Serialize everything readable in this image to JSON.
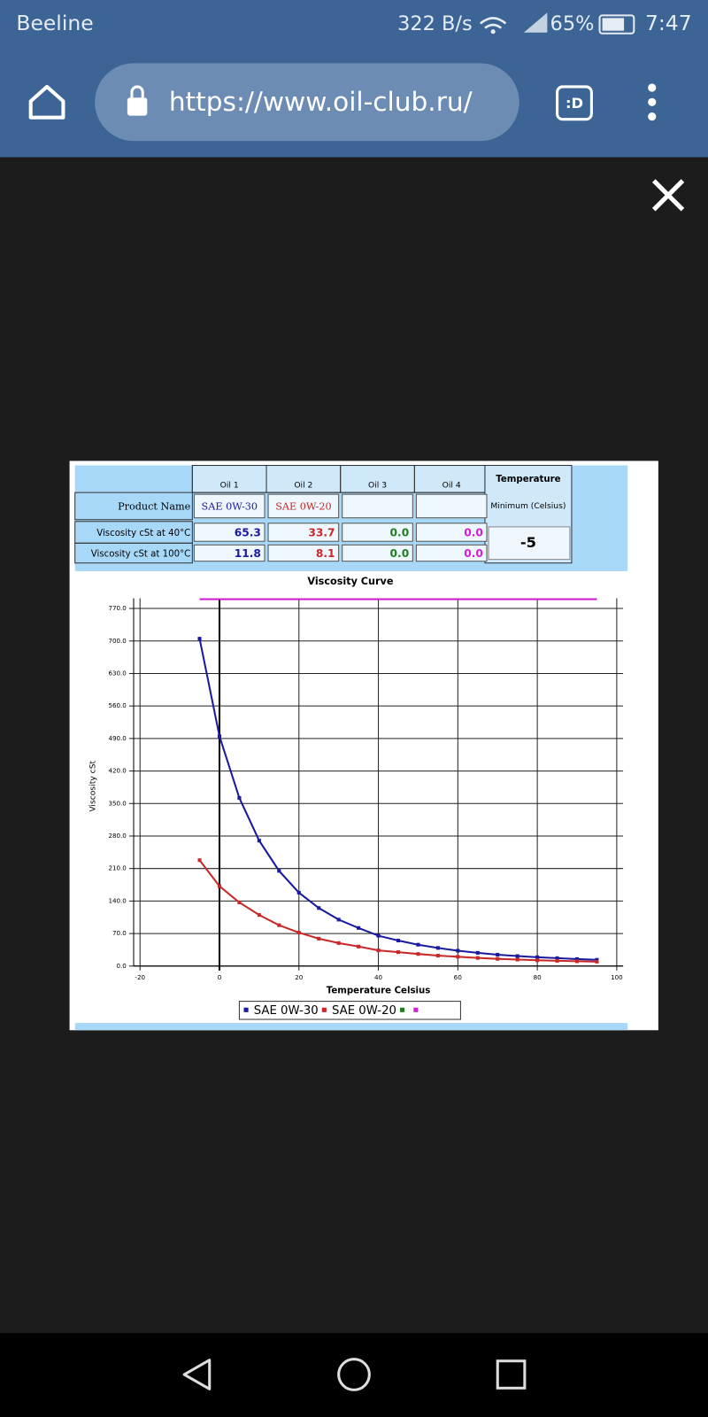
{
  "status_bar": {
    "carrier": "Beeline",
    "speed": "322 B/s",
    "battery": "65%",
    "time": "7:47"
  },
  "browser": {
    "url": "https://www.oil-club.ru/",
    "tab_icon": ":D"
  },
  "table": {
    "columns": [
      "Oil 1",
      "Oil 2",
      "Oil 3",
      "Oil 4"
    ],
    "temperature_header": "Temperature",
    "temperature_sub": "Minimum (Celsius)",
    "temperature_value": "-5",
    "rows": [
      {
        "label": "Product Name",
        "cells": [
          "SAE 0W-30",
          "SAE 0W-20"
        ]
      },
      {
        "label": "Viscosity cSt at 40°C",
        "cells": [
          "65.3",
          "33.7",
          "0.0",
          "0.0"
        ]
      },
      {
        "label": "Viscosity cSt at 100°C",
        "cells": [
          "11.8",
          "8.1",
          "0.0",
          "0.0"
        ]
      }
    ]
  },
  "chart_data": {
    "type": "line",
    "title": "Viscosity Curve",
    "xlabel": "Temperature Celsius",
    "ylabel": "Viscosity cSt",
    "x": [
      -5,
      0,
      5,
      10,
      15,
      20,
      25,
      30,
      35,
      40,
      45,
      50,
      55,
      60,
      65,
      70,
      75,
      80,
      85,
      90,
      95
    ],
    "series": [
      {
        "name": "SAE 0W-30",
        "color": "#1a1aa0",
        "values": [
          705,
          495,
          362,
          270,
          205,
          158,
          125,
          100,
          82,
          65.3,
          55,
          46,
          39,
          33,
          28.5,
          24.5,
          21.5,
          19,
          17,
          15,
          13.5
        ]
      },
      {
        "name": "SAE 0W-20",
        "color": "#c82828",
        "values": [
          228,
          172,
          137,
          110,
          88,
          72,
          59,
          49.5,
          42,
          33.7,
          30,
          26,
          22.5,
          20,
          17.5,
          15.5,
          14,
          12.5,
          11.3,
          10.3,
          9.5
        ]
      },
      {
        "color": "#d020d0",
        "values": [
          790,
          790,
          790,
          790,
          790,
          790,
          790,
          790,
          790,
          790,
          790,
          790,
          790,
          790,
          790,
          790,
          790,
          790,
          790,
          790,
          790
        ]
      }
    ],
    "xlim": [
      -21.6,
      101.6
    ],
    "xticks": [
      -20,
      0,
      20,
      40,
      60,
      80,
      100
    ],
    "ylim": [
      0,
      792
    ],
    "yticks": [
      {
        "value": 0,
        "label": "0.0"
      },
      {
        "value": 70,
        "label": "70.0"
      },
      {
        "value": 140,
        "label": "140.0"
      },
      {
        "value": 210,
        "label": "210.0"
      },
      {
        "value": 280,
        "label": "280.0"
      },
      {
        "value": 350,
        "label": "350.0"
      },
      {
        "value": 420,
        "label": "420.0"
      },
      {
        "value": 490,
        "label": "490.0"
      },
      {
        "value": 560,
        "label": "560.0"
      },
      {
        "value": 630,
        "label": "630.0"
      },
      {
        "value": 700,
        "label": "700.0"
      },
      {
        "value": 770,
        "label": "770.0"
      }
    ],
    "grid": true,
    "legend": "bottom"
  }
}
